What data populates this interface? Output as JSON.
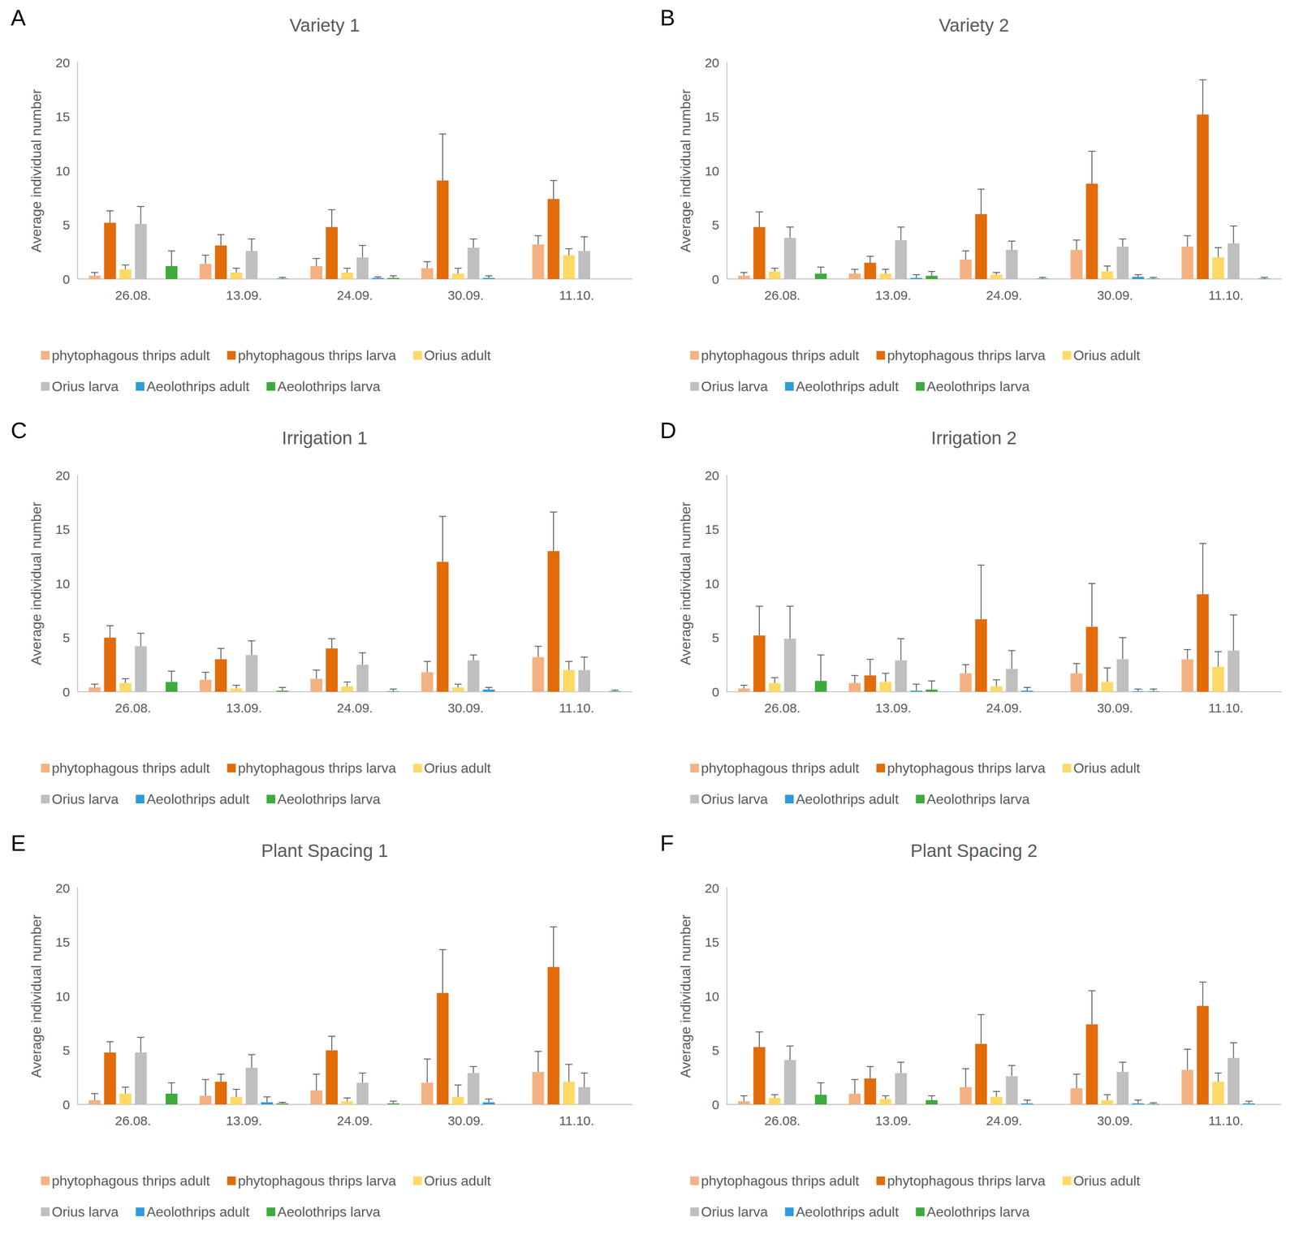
{
  "chart_data": [
    {
      "type": "bar",
      "panel": "A",
      "title": "Variety 1",
      "y_label": "Average individual number",
      "categories": [
        "26.08.",
        "13.09.",
        "24.09.",
        "30.09.",
        "11.10."
      ],
      "ylim": [
        0,
        20
      ],
      "yticks": [
        0,
        5,
        10,
        15,
        20
      ],
      "grid": false,
      "legend": "bottom",
      "series": [
        {
          "name": "phytophagous thrips adult",
          "color": "#F4B183",
          "values": [
            0.3,
            1.4,
            1.2,
            1.0,
            3.2
          ],
          "errors": [
            0.3,
            0.8,
            0.7,
            0.6,
            0.8
          ]
        },
        {
          "name": "phytophagous thrips larva",
          "color": "#E26B0A",
          "values": [
            5.2,
            3.1,
            4.8,
            9.1,
            7.4
          ],
          "errors": [
            1.1,
            1.0,
            1.6,
            4.3,
            1.7
          ]
        },
        {
          "name": "Orius adult",
          "color": "#FFD966",
          "values": [
            0.9,
            0.6,
            0.6,
            0.5,
            2.2
          ],
          "errors": [
            0.4,
            0.4,
            0.4,
            0.5,
            0.6
          ]
        },
        {
          "name": "Orius larva",
          "color": "#BFBFBF",
          "values": [
            5.1,
            2.6,
            2.0,
            2.9,
            2.6
          ],
          "errors": [
            1.6,
            1.1,
            1.1,
            0.8,
            1.3
          ]
        },
        {
          "name": "Aeolothrips adult",
          "color": "#2E9BDA",
          "values": [
            0,
            0,
            0.1,
            0.1,
            0
          ],
          "errors": [
            0,
            0,
            0.1,
            0.2,
            0
          ]
        },
        {
          "name": "Aeolothrips larva",
          "color": "#3DAA3D",
          "values": [
            1.2,
            0.05,
            0.1,
            0,
            0
          ],
          "errors": [
            1.4,
            0.1,
            0.2,
            0,
            0
          ]
        }
      ]
    },
    {
      "type": "bar",
      "panel": "B",
      "title": "Variety 2",
      "y_label": "Average individual number",
      "categories": [
        "26.08.",
        "13.09.",
        "24.09.",
        "30.09.",
        "11.10."
      ],
      "ylim": [
        0,
        20
      ],
      "yticks": [
        0,
        5,
        10,
        15,
        20
      ],
      "grid": false,
      "legend": "bottom",
      "series": [
        {
          "name": "phytophagous thrips adult",
          "color": "#F4B183",
          "values": [
            0.3,
            0.5,
            1.8,
            2.7,
            3.0
          ],
          "errors": [
            0.3,
            0.4,
            0.8,
            0.9,
            1.0
          ]
        },
        {
          "name": "phytophagous thrips larva",
          "color": "#E26B0A",
          "values": [
            4.8,
            1.5,
            6.0,
            8.8,
            15.2
          ],
          "errors": [
            1.4,
            0.6,
            2.3,
            3.0,
            3.2
          ]
        },
        {
          "name": "Orius adult",
          "color": "#FFD966",
          "values": [
            0.7,
            0.5,
            0.4,
            0.7,
            2.0
          ],
          "errors": [
            0.3,
            0.4,
            0.2,
            0.5,
            0.9
          ]
        },
        {
          "name": "Orius larva",
          "color": "#BFBFBF",
          "values": [
            3.8,
            3.6,
            2.7,
            3.0,
            3.3
          ],
          "errors": [
            1.0,
            1.2,
            0.8,
            0.7,
            1.6
          ]
        },
        {
          "name": "Aeolothrips adult",
          "color": "#2E9BDA",
          "values": [
            0,
            0.1,
            0,
            0.2,
            0
          ],
          "errors": [
            0,
            0.3,
            0,
            0.2,
            0
          ]
        },
        {
          "name": "Aeolothrips larva",
          "color": "#3DAA3D",
          "values": [
            0.5,
            0.3,
            0.05,
            0.05,
            0.05
          ],
          "errors": [
            0.6,
            0.4,
            0.1,
            0.1,
            0.1
          ]
        }
      ]
    },
    {
      "type": "bar",
      "panel": "C",
      "title": "Irrigation 1",
      "y_label": "Average individual number",
      "categories": [
        "26.08.",
        "13.09.",
        "24.09.",
        "30.09.",
        "11.10."
      ],
      "ylim": [
        0,
        20
      ],
      "yticks": [
        0,
        5,
        10,
        15,
        20
      ],
      "grid": false,
      "legend": "bottom",
      "series": [
        {
          "name": "phytophagous thrips adult",
          "color": "#F4B183",
          "values": [
            0.4,
            1.1,
            1.2,
            1.8,
            3.2
          ],
          "errors": [
            0.3,
            0.7,
            0.8,
            1.0,
            1.0
          ]
        },
        {
          "name": "phytophagous thrips larva",
          "color": "#E26B0A",
          "values": [
            5.0,
            3.0,
            4.0,
            12.0,
            13.0
          ],
          "errors": [
            1.1,
            1.0,
            0.9,
            4.2,
            3.6
          ]
        },
        {
          "name": "Orius adult",
          "color": "#FFD966",
          "values": [
            0.8,
            0.3,
            0.5,
            0.4,
            2.0
          ],
          "errors": [
            0.4,
            0.3,
            0.4,
            0.3,
            0.8
          ]
        },
        {
          "name": "Orius larva",
          "color": "#BFBFBF",
          "values": [
            4.2,
            3.4,
            2.5,
            2.9,
            2.0
          ],
          "errors": [
            1.2,
            1.3,
            1.1,
            0.5,
            1.2
          ]
        },
        {
          "name": "Aeolothrips adult",
          "color": "#2E9BDA",
          "values": [
            0,
            0,
            0,
            0.2,
            0
          ],
          "errors": [
            0,
            0,
            0,
            0.2,
            0
          ]
        },
        {
          "name": "Aeolothrips larva",
          "color": "#3DAA3D",
          "values": [
            0.9,
            0.1,
            0.05,
            0,
            0.05
          ],
          "errors": [
            1.0,
            0.3,
            0.2,
            0,
            0.1
          ]
        }
      ]
    },
    {
      "type": "bar",
      "panel": "D",
      "title": "Irrigation 2",
      "y_label": "Average individual number",
      "categories": [
        "26.08.",
        "13.09.",
        "24.09.",
        "30.09.",
        "11.10."
      ],
      "ylim": [
        0,
        20
      ],
      "yticks": [
        0,
        5,
        10,
        15,
        20
      ],
      "grid": false,
      "legend": "bottom",
      "series": [
        {
          "name": "phytophagous thrips adult",
          "color": "#F4B183",
          "values": [
            0.3,
            0.8,
            1.7,
            1.7,
            3.0
          ],
          "errors": [
            0.3,
            0.7,
            0.8,
            0.9,
            0.9
          ]
        },
        {
          "name": "phytophagous thrips larva",
          "color": "#E26B0A",
          "values": [
            5.2,
            1.5,
            6.7,
            6.0,
            9.0
          ],
          "errors": [
            2.7,
            1.5,
            5.0,
            4.0,
            4.7
          ]
        },
        {
          "name": "Orius adult",
          "color": "#FFD966",
          "values": [
            0.8,
            0.9,
            0.5,
            0.9,
            2.3
          ],
          "errors": [
            0.5,
            0.8,
            0.6,
            1.3,
            1.4
          ]
        },
        {
          "name": "Orius larva",
          "color": "#BFBFBF",
          "values": [
            4.9,
            2.9,
            2.1,
            3.0,
            3.8
          ],
          "errors": [
            3.0,
            2.0,
            1.7,
            2.0,
            3.3
          ]
        },
        {
          "name": "Aeolothrips adult",
          "color": "#2E9BDA",
          "values": [
            0,
            0.1,
            0.1,
            0.05,
            0
          ],
          "errors": [
            0,
            0.6,
            0.3,
            0.2,
            0
          ]
        },
        {
          "name": "Aeolothrips larva",
          "color": "#3DAA3D",
          "values": [
            1.0,
            0.2,
            0,
            0.05,
            0
          ],
          "errors": [
            2.4,
            0.8,
            0,
            0.2,
            0
          ]
        }
      ]
    },
    {
      "type": "bar",
      "panel": "E",
      "title": "Plant Spacing 1",
      "y_label": "Average individual number",
      "categories": [
        "26.08.",
        "13.09.",
        "24.09.",
        "30.09.",
        "11.10."
      ],
      "ylim": [
        0,
        20
      ],
      "yticks": [
        0,
        5,
        10,
        15,
        20
      ],
      "grid": false,
      "legend": "bottom",
      "series": [
        {
          "name": "phytophagous thrips adult",
          "color": "#F4B183",
          "values": [
            0.4,
            0.8,
            1.3,
            2.0,
            3.0
          ],
          "errors": [
            0.6,
            1.5,
            1.5,
            2.2,
            1.9
          ]
        },
        {
          "name": "phytophagous thrips larva",
          "color": "#E26B0A",
          "values": [
            4.8,
            2.1,
            5.0,
            10.3,
            12.7
          ],
          "errors": [
            1.0,
            0.7,
            1.3,
            4.0,
            3.7
          ]
        },
        {
          "name": "Orius adult",
          "color": "#FFD966",
          "values": [
            1.0,
            0.7,
            0.3,
            0.7,
            2.1
          ],
          "errors": [
            0.6,
            0.7,
            0.3,
            1.1,
            1.6
          ]
        },
        {
          "name": "Orius larva",
          "color": "#BFBFBF",
          "values": [
            4.8,
            3.4,
            2.0,
            2.9,
            1.6
          ],
          "errors": [
            1.4,
            1.2,
            0.9,
            0.6,
            1.3
          ]
        },
        {
          "name": "Aeolothrips adult",
          "color": "#2E9BDA",
          "values": [
            0,
            0.2,
            0,
            0.2,
            0
          ],
          "errors": [
            0,
            0.5,
            0,
            0.3,
            0
          ]
        },
        {
          "name": "Aeolothrips larva",
          "color": "#3DAA3D",
          "values": [
            1.0,
            0.1,
            0.1,
            0,
            0
          ],
          "errors": [
            1.0,
            0.1,
            0.2,
            0,
            0
          ]
        }
      ]
    },
    {
      "type": "bar",
      "panel": "F",
      "title": "Plant Spacing 2",
      "y_label": "Average individual number",
      "categories": [
        "26.08.",
        "13.09.",
        "24.09.",
        "30.09.",
        "11.10."
      ],
      "ylim": [
        0,
        20
      ],
      "yticks": [
        0,
        5,
        10,
        15,
        20
      ],
      "grid": false,
      "legend": "bottom",
      "series": [
        {
          "name": "phytophagous thrips adult",
          "color": "#F4B183",
          "values": [
            0.3,
            1.0,
            1.6,
            1.5,
            3.2
          ],
          "errors": [
            0.5,
            1.3,
            1.7,
            1.3,
            1.9
          ]
        },
        {
          "name": "phytophagous thrips larva",
          "color": "#E26B0A",
          "values": [
            5.3,
            2.4,
            5.6,
            7.4,
            9.1
          ],
          "errors": [
            1.4,
            1.1,
            2.7,
            3.1,
            2.2
          ]
        },
        {
          "name": "Orius adult",
          "color": "#FFD966",
          "values": [
            0.6,
            0.5,
            0.7,
            0.4,
            2.1
          ],
          "errors": [
            0.3,
            0.3,
            0.5,
            0.5,
            0.8
          ]
        },
        {
          "name": "Orius larva",
          "color": "#BFBFBF",
          "values": [
            4.1,
            2.9,
            2.6,
            3.0,
            4.3
          ],
          "errors": [
            1.3,
            1.0,
            1.0,
            0.9,
            1.4
          ]
        },
        {
          "name": "Aeolothrips adult",
          "color": "#2E9BDA",
          "values": [
            0,
            0,
            0.1,
            0.1,
            0.1
          ],
          "errors": [
            0,
            0,
            0.3,
            0.3,
            0.2
          ]
        },
        {
          "name": "Aeolothrips larva",
          "color": "#3DAA3D",
          "values": [
            0.9,
            0.4,
            0,
            0.05,
            0
          ],
          "errors": [
            1.1,
            0.4,
            0,
            0.1,
            0
          ]
        }
      ]
    }
  ]
}
